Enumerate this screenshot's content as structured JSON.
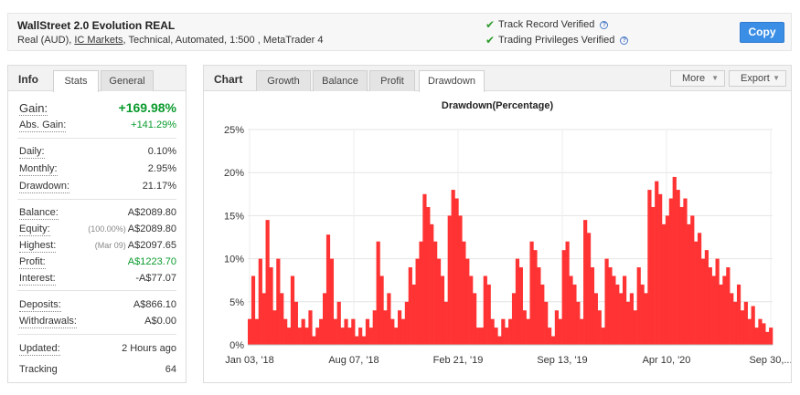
{
  "header": {
    "title": "WallStreet 2.0 Evolution REAL",
    "sub_prefix": "Real (AUD), ",
    "broker": "IC Markets",
    "sub_suffix": ", Technical, Automated, 1:500 , MetaTrader 4",
    "verified1": "Track Record Verified",
    "verified2": "Trading Privileges Verified",
    "copy_label": "Copy"
  },
  "info": {
    "label": "Info",
    "tabs": [
      "Stats",
      "General"
    ],
    "gain": {
      "label": "Gain:",
      "value": "+169.98%"
    },
    "abs_gain": {
      "label": "Abs. Gain:",
      "value": "+141.29%"
    },
    "daily": {
      "label": "Daily:",
      "value": "0.10%"
    },
    "monthly": {
      "label": "Monthly:",
      "value": "2.95%"
    },
    "drawdown": {
      "label": "Drawdown:",
      "value": "21.17%"
    },
    "balance": {
      "label": "Balance:",
      "value": "A$2089.80"
    },
    "equity": {
      "label": "Equity:",
      "note": "(100.00%)",
      "value": "A$2089.80"
    },
    "highest": {
      "label": "Highest:",
      "note": "(Mar 09)",
      "value": "A$2097.65"
    },
    "profit": {
      "label": "Profit:",
      "value": "A$1223.70"
    },
    "interest": {
      "label": "Interest:",
      "value": "-A$77.07"
    },
    "deposits": {
      "label": "Deposits:",
      "value": "A$866.10"
    },
    "withdrawals": {
      "label": "Withdrawals:",
      "value": "A$0.00"
    },
    "updated": {
      "label": "Updated:",
      "value": "2 Hours ago"
    },
    "tracking": {
      "label": "Tracking",
      "value": "64"
    }
  },
  "chart_panel": {
    "label": "Chart",
    "tabs": [
      "Growth",
      "Balance",
      "Profit",
      "Drawdown"
    ],
    "more_label": "More",
    "export_label": "Export"
  },
  "chart_data": {
    "type": "bar",
    "title": "Drawdown(Percentage)",
    "ylim": [
      0,
      25
    ],
    "yticks": [
      "0%",
      "5%",
      "10%",
      "15%",
      "20%",
      "25%"
    ],
    "xticks": [
      "Jan 03, '18",
      "Aug 07, '18",
      "Feb 21, '19",
      "Sep 13, '19",
      "Apr 10, '20",
      "Sep 30,..."
    ],
    "grid": true,
    "color": "#ff3333",
    "values": [
      3,
      8,
      3,
      10,
      6,
      14.5,
      9,
      4,
      10,
      6,
      3,
      2,
      8,
      5,
      2,
      3,
      2,
      4,
      1,
      2,
      3,
      6,
      12.8,
      10,
      3,
      5,
      2,
      3,
      2,
      3,
      1,
      2,
      1,
      3,
      2,
      4,
      12,
      8,
      4,
      6,
      3,
      2,
      4,
      3,
      5,
      9,
      7,
      10,
      12,
      17.5,
      16,
      14,
      12,
      10,
      8,
      5,
      15,
      18,
      17,
      15,
      12,
      10,
      8,
      6,
      2,
      2,
      8,
      7,
      3,
      2,
      1,
      3,
      2,
      3,
      6,
      10,
      9,
      4,
      3,
      12,
      11,
      9,
      7,
      5,
      2,
      1,
      4,
      3,
      11,
      12,
      8,
      7,
      5,
      3,
      14.5,
      13,
      9,
      6,
      4,
      2,
      10,
      9,
      8,
      7,
      6,
      8,
      5,
      6,
      4,
      9,
      7,
      6,
      18,
      16,
      19,
      17.5,
      14,
      15,
      17,
      19.5,
      18,
      16,
      17,
      14,
      15,
      12,
      13,
      10,
      11,
      9,
      8,
      10,
      7,
      8,
      9,
      6,
      5,
      7,
      4,
      5,
      3,
      4.5,
      2,
      3,
      2.5,
      1.5,
      2
    ]
  }
}
